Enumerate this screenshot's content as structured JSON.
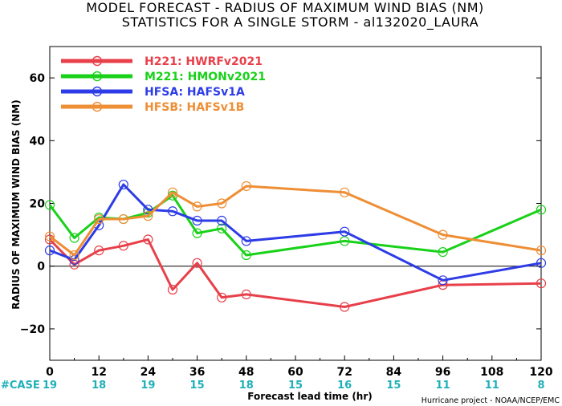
{
  "chart_data": {
    "type": "line",
    "title": "MODEL FORECAST - RADIUS OF MAXIMUM WIND BIAS (NM)",
    "subtitle": "STATISTICS FOR A SINGLE STORM - al132020_LAURA",
    "xlabel": "Forecast lead time (hr)",
    "ylabel": "RADIUS OF MAXIMUM WIND BIAS (NM)",
    "xlim": [
      0,
      120
    ],
    "ylim": [
      -30,
      70
    ],
    "xticks": [
      0,
      12,
      24,
      36,
      48,
      60,
      72,
      84,
      96,
      108,
      120
    ],
    "yticks": [
      -20,
      0,
      20,
      40,
      60
    ],
    "grid": false,
    "zero_line": true,
    "legend_position": "top-left",
    "case_label": "#CASE",
    "cases": [
      19,
      18,
      19,
      15,
      18,
      15,
      16,
      15,
      11,
      11,
      8
    ],
    "credit": "Hurricane project - NOAA/NCEP/EMC",
    "series": [
      {
        "name": "H221: HWRFv2021",
        "color": "#e8404a",
        "x": [
          0,
          6,
          12,
          18,
          24,
          30,
          36,
          42,
          48,
          72,
          96,
          120
        ],
        "y": [
          8.5,
          0.5,
          5,
          6.5,
          8.5,
          -7.5,
          1,
          -10,
          -9,
          -13,
          -6,
          -5.5
        ]
      },
      {
        "name": "M221: HMONv2021",
        "color": "#19d119",
        "x": [
          0,
          6,
          12,
          18,
          24,
          30,
          36,
          42,
          48,
          72,
          96,
          120
        ],
        "y": [
          19.5,
          9,
          15.5,
          15,
          17,
          22.5,
          10.5,
          12,
          3.5,
          8,
          4.5,
          18
        ]
      },
      {
        "name": "HFSA: HAFSv1A",
        "color": "#2d3ce6",
        "x": [
          0,
          6,
          12,
          18,
          24,
          30,
          36,
          42,
          48,
          72,
          96,
          120
        ],
        "y": [
          5,
          2,
          13,
          26,
          18,
          17.5,
          14.5,
          14.5,
          8,
          11,
          -4.5,
          1
        ]
      },
      {
        "name": "HFSB: HAFSv1B",
        "color": "#ee8e35",
        "x": [
          0,
          6,
          12,
          18,
          24,
          30,
          36,
          42,
          48,
          72,
          96,
          120
        ],
        "y": [
          9.5,
          3.5,
          15,
          15,
          16,
          23.5,
          19,
          20,
          25.5,
          23.5,
          10,
          5
        ]
      }
    ]
  }
}
